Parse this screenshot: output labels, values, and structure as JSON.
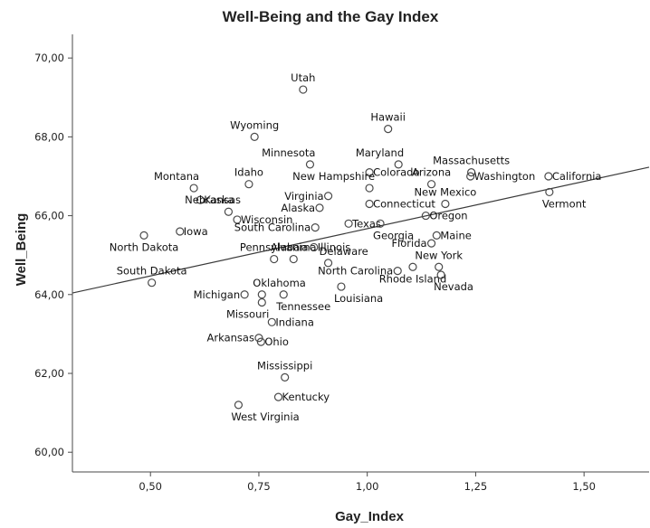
{
  "chart_data": {
    "type": "scatter",
    "title": "Well-Being and the Gay Index",
    "xlabel": "Gay_Index",
    "ylabel": "Well_Being",
    "xlim": [
      0.32,
      1.65
    ],
    "ylim": [
      59.5,
      70.6
    ],
    "xticks": [
      {
        "v": 0.5,
        "label": "0,50"
      },
      {
        "v": 0.75,
        "label": "0,75"
      },
      {
        "v": 1.0,
        "label": "1,00"
      },
      {
        "v": 1.25,
        "label": "1,25"
      },
      {
        "v": 1.5,
        "label": "1,50"
      }
    ],
    "yticks": [
      {
        "v": 60,
        "label": "60,00"
      },
      {
        "v": 62,
        "label": "62,00"
      },
      {
        "v": 64,
        "label": "64,00"
      },
      {
        "v": 66,
        "label": "66,00"
      },
      {
        "v": 68,
        "label": "68,00"
      },
      {
        "v": 70,
        "label": "70,00"
      }
    ],
    "fit_line": {
      "x": [
        0.32,
        1.65
      ],
      "y": [
        64.04,
        67.23
      ]
    },
    "grid": false,
    "legend": "none",
    "points": [
      {
        "label": "Utah",
        "x": 0.852,
        "y": 69.2,
        "anchor": "middle",
        "side": "above"
      },
      {
        "label": "Hawaii",
        "x": 1.048,
        "y": 68.2,
        "anchor": "middle",
        "side": "above"
      },
      {
        "label": "Wyoming",
        "x": 0.74,
        "y": 68.0,
        "anchor": "middle",
        "side": "above"
      },
      {
        "label": "Minnesota",
        "x": 0.868,
        "y": 67.3,
        "anchor": "end",
        "side": "above"
      },
      {
        "label": "Maryland",
        "x": 1.072,
        "y": 67.3,
        "anchor": "end",
        "side": "above"
      },
      {
        "label": "Massachusetts",
        "x": 1.24,
        "y": 67.1,
        "anchor": "middle",
        "side": "above"
      },
      {
        "label": "Washington",
        "x": 1.238,
        "y": 67.0,
        "anchor": "start",
        "side": "right"
      },
      {
        "label": "California",
        "x": 1.418,
        "y": 67.0,
        "anchor": "start",
        "side": "right"
      },
      {
        "label": "Idaho",
        "x": 0.727,
        "y": 66.8,
        "anchor": "middle",
        "side": "above"
      },
      {
        "label": "Montana",
        "x": 0.6,
        "y": 66.7,
        "anchor": "end",
        "side": "above"
      },
      {
        "label": "Colorado",
        "x": 1.005,
        "y": 67.1,
        "anchor": "start",
        "side": "right"
      },
      {
        "label": "Arizona",
        "x": 1.148,
        "y": 66.8,
        "anchor": "middle",
        "side": "above"
      },
      {
        "label": "New Hampshire",
        "x": 1.005,
        "y": 66.7,
        "anchor": "end",
        "side": "above"
      },
      {
        "label": "Vermont",
        "x": 1.42,
        "y": 66.6,
        "anchor": "start",
        "side": "below"
      },
      {
        "label": "Virginia",
        "x": 0.91,
        "y": 66.5,
        "anchor": "end",
        "side": "left"
      },
      {
        "label": "Kansas",
        "x": 0.615,
        "y": 66.4,
        "anchor": "start",
        "side": "right"
      },
      {
        "label": "New Mexico",
        "x": 1.18,
        "y": 66.3,
        "anchor": "middle",
        "side": "above"
      },
      {
        "label": "Connecticut",
        "x": 1.005,
        "y": 66.3,
        "anchor": "start",
        "side": "right"
      },
      {
        "label": "Alaska",
        "x": 0.89,
        "y": 66.2,
        "anchor": "end",
        "side": "left"
      },
      {
        "label": "Nebraska",
        "x": 0.68,
        "y": 66.1,
        "anchor": "end",
        "side": "above"
      },
      {
        "label": "Oregon",
        "x": 1.135,
        "y": 66.0,
        "anchor": "start",
        "side": "right"
      },
      {
        "label": "Wisconsin",
        "x": 0.7,
        "y": 65.9,
        "anchor": "start",
        "side": "right"
      },
      {
        "label": "Texas",
        "x": 0.957,
        "y": 65.8,
        "anchor": "start",
        "side": "right"
      },
      {
        "label": "Georgia",
        "x": 1.03,
        "y": 65.8,
        "anchor": "start",
        "side": "below"
      },
      {
        "label": "South Carolina",
        "x": 0.88,
        "y": 65.7,
        "anchor": "end",
        "side": "left"
      },
      {
        "label": "Iowa",
        "x": 0.568,
        "y": 65.6,
        "anchor": "start",
        "side": "right"
      },
      {
        "label": "Maine",
        "x": 1.16,
        "y": 65.5,
        "anchor": "start",
        "side": "right"
      },
      {
        "label": "North Dakota",
        "x": 0.485,
        "y": 65.5,
        "anchor": "middle",
        "side": "below"
      },
      {
        "label": "Florida",
        "x": 1.148,
        "y": 65.3,
        "anchor": "end",
        "side": "left"
      },
      {
        "label": "Illinois",
        "x": 0.877,
        "y": 65.2,
        "anchor": "start",
        "side": "right"
      },
      {
        "label": "Alabama",
        "x": 0.83,
        "y": 64.9,
        "anchor": "middle",
        "side": "above"
      },
      {
        "label": "Pennsylvania",
        "x": 0.785,
        "y": 64.9,
        "anchor": "middle",
        "side": "above"
      },
      {
        "label": "Delaware",
        "x": 0.91,
        "y": 64.8,
        "anchor": "start",
        "side": "above"
      },
      {
        "label": "New York",
        "x": 1.165,
        "y": 64.7,
        "anchor": "middle",
        "side": "above"
      },
      {
        "label": "Rhode Island",
        "x": 1.105,
        "y": 64.7,
        "anchor": "middle",
        "side": "below"
      },
      {
        "label": "North Carolina",
        "x": 1.07,
        "y": 64.6,
        "anchor": "end",
        "side": "left"
      },
      {
        "label": "Nevada",
        "x": 1.17,
        "y": 64.5,
        "anchor": "start",
        "side": "below"
      },
      {
        "label": "South Dakota",
        "x": 0.503,
        "y": 64.3,
        "anchor": "middle",
        "side": "above"
      },
      {
        "label": "Louisiana",
        "x": 0.94,
        "y": 64.2,
        "anchor": "start",
        "side": "below"
      },
      {
        "label": "Oklahoma",
        "x": 0.757,
        "y": 64.0,
        "anchor": "start",
        "side": "above"
      },
      {
        "label": "Michigan",
        "x": 0.717,
        "y": 64.0,
        "anchor": "end",
        "side": "left"
      },
      {
        "label": "Tennessee",
        "x": 0.807,
        "y": 64.0,
        "anchor": "start",
        "side": "below"
      },
      {
        "label": "Missouri",
        "x": 0.757,
        "y": 63.8,
        "anchor": "end",
        "side": "below"
      },
      {
        "label": "Indiana",
        "x": 0.78,
        "y": 63.3,
        "anchor": "start",
        "side": "right"
      },
      {
        "label": "Arkansas",
        "x": 0.75,
        "y": 62.9,
        "anchor": "end",
        "side": "left"
      },
      {
        "label": "Ohio",
        "x": 0.755,
        "y": 62.8,
        "anchor": "start",
        "side": "right"
      },
      {
        "label": "Mississippi",
        "x": 0.81,
        "y": 61.9,
        "anchor": "middle",
        "side": "above"
      },
      {
        "label": "Kentucky",
        "x": 0.795,
        "y": 61.4,
        "anchor": "start",
        "side": "right"
      },
      {
        "label": "West Virginia",
        "x": 0.703,
        "y": 61.2,
        "anchor": "start",
        "side": "below"
      }
    ]
  }
}
